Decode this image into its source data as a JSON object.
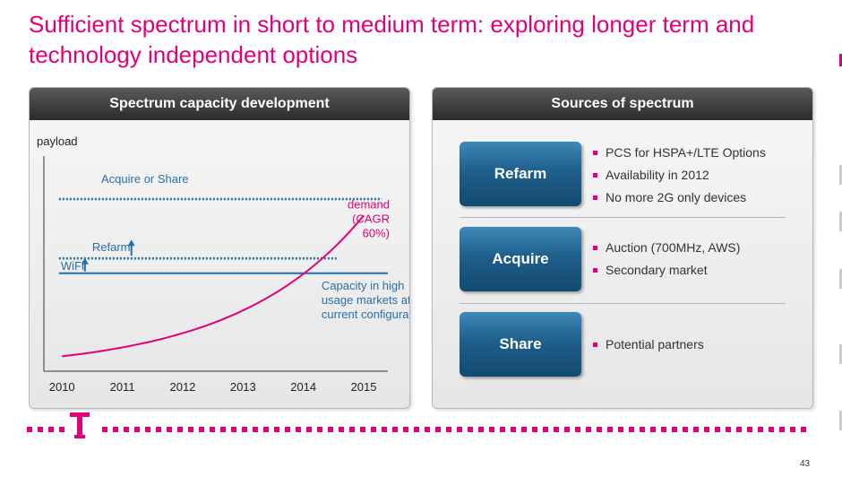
{
  "slide": {
    "title": "Sufficient spectrum in short to medium term: exploring longer term and technology independent options",
    "page_number": "43"
  },
  "colors": {
    "brand_magenta": "#e2007a",
    "capacity_blue": "#1f6fa8",
    "label_blue": "#2a6fa8",
    "header_dark": "#2b2b2b",
    "button_blue": "#1f5f8c"
  },
  "left_panel": {
    "header": "Spectrum capacity development"
  },
  "chart_data": {
    "type": "line",
    "ylabel": "payload",
    "x": [
      2010,
      2011,
      2012,
      2013,
      2014,
      2015
    ],
    "x_tick_labels": [
      "2010",
      "2011",
      "2012",
      "2013",
      "2014",
      "2015"
    ],
    "series": [
      {
        "name": "demand",
        "label_lines": [
          "demand",
          "(CAGR",
          "60%)"
        ],
        "cagr": 0.6,
        "values": [
          1.0,
          1.6,
          2.56,
          4.1,
          6.55,
          10.49
        ],
        "color": "#e2007a"
      }
    ],
    "levels": [
      {
        "label": "Capacity in high usage markets at current configuration",
        "label_lines": [
          "Capacity in high",
          "usage markets at",
          "current configuration"
        ],
        "value": 6.6,
        "style": "solid",
        "color": "#1f6fa8"
      },
      {
        "label": "WiFi",
        "value": 6.6,
        "style": "arrow-up",
        "color": "#1f6fa8"
      },
      {
        "label": "Refarm",
        "value": 7.6,
        "style": "dotted",
        "color": "#1f6fa8"
      },
      {
        "label": "Acquire or Share",
        "value": 11.6,
        "style": "dotted",
        "color": "#1f6fa8"
      }
    ],
    "xlim": [
      2009.7,
      2015.4
    ],
    "ylim": [
      0,
      14.5
    ],
    "grid": false
  },
  "right_panel": {
    "header": "Sources of spectrum",
    "sources": [
      {
        "label": "Refarm",
        "bullets": [
          "PCS for HSPA+/LTE Options",
          "Availability in 2012",
          "No more 2G only devices"
        ]
      },
      {
        "label": "Acquire",
        "bullets": [
          "Auction (700MHz, AWS)",
          "Secondary market"
        ]
      },
      {
        "label": "Share",
        "bullets": [
          "Potential partners"
        ]
      }
    ]
  },
  "footer": {
    "logo": "T"
  }
}
